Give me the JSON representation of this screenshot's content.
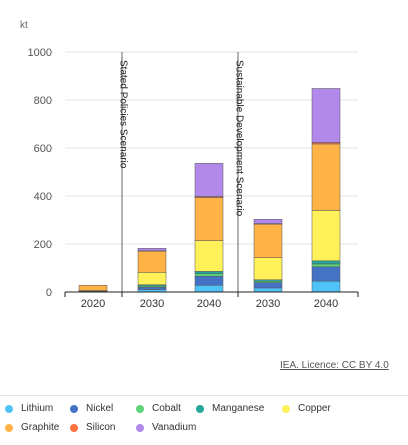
{
  "chart_data": {
    "type": "bar",
    "stacked": true,
    "y_unit_label": "kt",
    "ylim": [
      0,
      1000
    ],
    "yticks": [
      0,
      200,
      400,
      600,
      800,
      1000
    ],
    "categories": [
      "2020",
      "2030",
      "2040",
      "2030",
      "2040"
    ],
    "scenario_labels": [
      "Stated Policies Scenario",
      "Sustainable Development Scenario"
    ],
    "series": [
      {
        "name": "Lithium",
        "color": "#4fc3f7",
        "values": [
          1,
          10,
          28,
          17,
          45
        ]
      },
      {
        "name": "Nickel",
        "color": "#4472c4",
        "values": [
          1,
          10,
          38,
          22,
          60
        ]
      },
      {
        "name": "Cobalt",
        "color": "#5dd37a",
        "values": [
          1,
          5,
          10,
          6,
          12
        ]
      },
      {
        "name": "Manganese",
        "color": "#26a69a",
        "values": [
          1,
          5,
          10,
          6,
          13
        ]
      },
      {
        "name": "Copper",
        "color": "#fff15a",
        "values": [
          2,
          52,
          128,
          92,
          210
        ]
      },
      {
        "name": "Graphite",
        "color": "#ffb347",
        "values": [
          22,
          88,
          180,
          140,
          277
        ]
      },
      {
        "name": "Silicon",
        "color": "#ff7043",
        "values": [
          0,
          2,
          4,
          2,
          6
        ]
      },
      {
        "name": "Vanadium",
        "color": "#b388eb",
        "values": [
          0,
          10,
          138,
          18,
          225
        ]
      }
    ]
  },
  "credit": "IEA. Licence: CC BY 4.0"
}
